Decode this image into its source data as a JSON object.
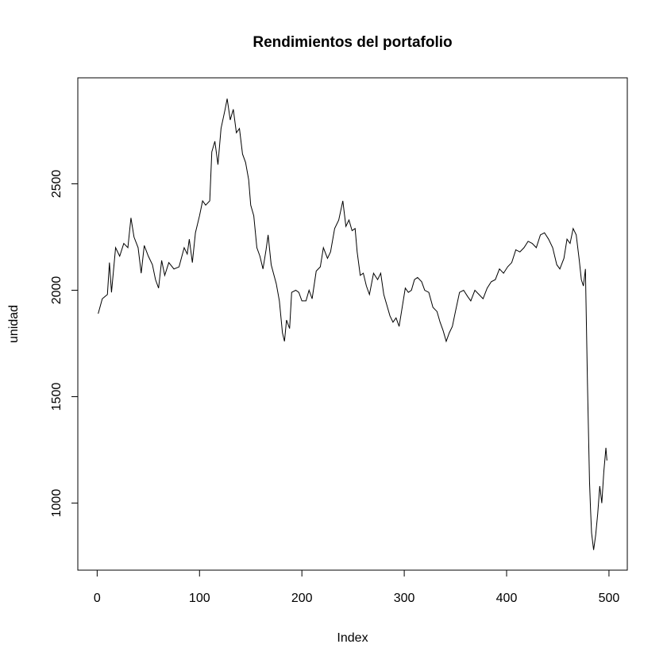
{
  "chart_data": {
    "type": "line",
    "title": "Rendimientos del portafolio",
    "x_label": "Index",
    "y_label": "unidad",
    "x": [
      1,
      5,
      10,
      12,
      14,
      18,
      22,
      26,
      30,
      33,
      36,
      40,
      43,
      46,
      50,
      54,
      57,
      60,
      63,
      66,
      70,
      75,
      80,
      85,
      88,
      90,
      93,
      96,
      100,
      103,
      106,
      110,
      112,
      115,
      118,
      121,
      125,
      127,
      130,
      133,
      136,
      139,
      142,
      145,
      148,
      150,
      153,
      156,
      159,
      162,
      165,
      167,
      170,
      175,
      178,
      181,
      183,
      185,
      188,
      190,
      194,
      197,
      200,
      204,
      207,
      210,
      214,
      218,
      221,
      225,
      228,
      232,
      236,
      240,
      243,
      246,
      249,
      252,
      254,
      257,
      260,
      263,
      266,
      270,
      274,
      277,
      280,
      283,
      286,
      289,
      292,
      295,
      298,
      301,
      304,
      307,
      310,
      313,
      317,
      320,
      324,
      328,
      332,
      335,
      338,
      341,
      344,
      347,
      350,
      354,
      358,
      362,
      365,
      369,
      373,
      377,
      381,
      385,
      389,
      393,
      397,
      401,
      405,
      409,
      413,
      417,
      421,
      425,
      429,
      433,
      437,
      441,
      445,
      449,
      452,
      456,
      459,
      462,
      465,
      468,
      471,
      473,
      475,
      477,
      479,
      481,
      482,
      483,
      485,
      487,
      489,
      491,
      493,
      495,
      497,
      498
    ],
    "series": [
      {
        "name": "unidad",
        "color": "#000000",
        "values": [
          1890,
          1960,
          1980,
          2130,
          1990,
          2200,
          2160,
          2220,
          2200,
          2340,
          2250,
          2200,
          2080,
          2210,
          2160,
          2120,
          2050,
          2010,
          2140,
          2070,
          2130,
          2100,
          2110,
          2200,
          2170,
          2240,
          2130,
          2270,
          2350,
          2420,
          2400,
          2420,
          2650,
          2700,
          2590,
          2760,
          2850,
          2900,
          2800,
          2850,
          2740,
          2760,
          2640,
          2600,
          2520,
          2400,
          2350,
          2200,
          2160,
          2100,
          2190,
          2260,
          2120,
          2030,
          1950,
          1800,
          1760,
          1860,
          1820,
          1990,
          2000,
          1990,
          1950,
          1950,
          2000,
          1960,
          2090,
          2110,
          2200,
          2150,
          2180,
          2290,
          2330,
          2420,
          2300,
          2330,
          2280,
          2290,
          2180,
          2070,
          2080,
          2020,
          1980,
          2080,
          2050,
          2080,
          1980,
          1930,
          1880,
          1850,
          1870,
          1830,
          1920,
          2010,
          1990,
          2000,
          2050,
          2060,
          2040,
          2000,
          1990,
          1920,
          1900,
          1850,
          1810,
          1760,
          1800,
          1830,
          1900,
          1990,
          2000,
          1970,
          1950,
          2000,
          1980,
          1960,
          2010,
          2040,
          2050,
          2100,
          2080,
          2110,
          2130,
          2190,
          2180,
          2200,
          2230,
          2220,
          2200,
          2260,
          2270,
          2240,
          2200,
          2120,
          2100,
          2150,
          2240,
          2220,
          2290,
          2260,
          2140,
          2050,
          2020,
          2100,
          1560,
          1100,
          970,
          860,
          780,
          850,
          950,
          1080,
          1000,
          1150,
          1260,
          1200
        ]
      }
    ],
    "xlim": [
      -18.9,
      517.9
    ],
    "ylim": [
      685,
      2998
    ],
    "xticks": [
      0,
      100,
      200,
      300,
      400,
      500
    ],
    "yticks": [
      1000,
      1500,
      2000,
      2500
    ]
  }
}
